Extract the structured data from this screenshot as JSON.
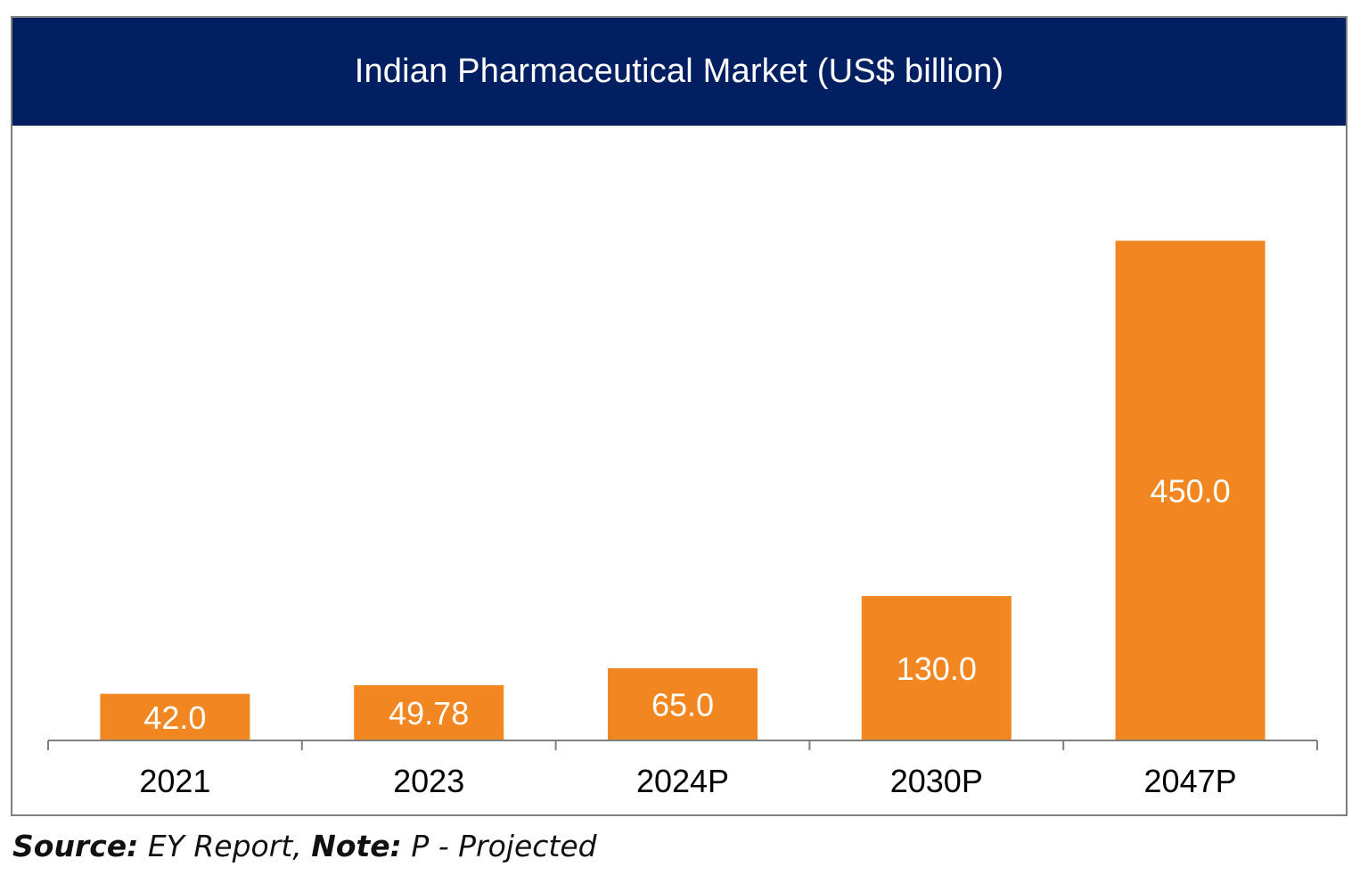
{
  "chart_data": {
    "type": "bar",
    "title": "Indian Pharmaceutical Market (US$ billion)",
    "categories": [
      "2021",
      "2023",
      "2024P",
      "2030P",
      "2047P"
    ],
    "values": [
      42.0,
      49.78,
      65.0,
      130.0,
      450.0
    ],
    "data_labels": [
      "42.0",
      "49.78",
      "65.0",
      "130.0",
      "450.0"
    ],
    "xlabel": "",
    "ylabel": "",
    "ylim": [
      0,
      540
    ],
    "grid": false,
    "legend": "none",
    "colors": {
      "bar": "#F28722",
      "title_band": "#022061",
      "axis": "#7f7f7f",
      "label_on_bar": "#ffffff"
    }
  },
  "footer": {
    "source_label": "Source:",
    "source_text": " EY Report, ",
    "note_label": "Note:",
    "note_text": " P - Projected"
  }
}
